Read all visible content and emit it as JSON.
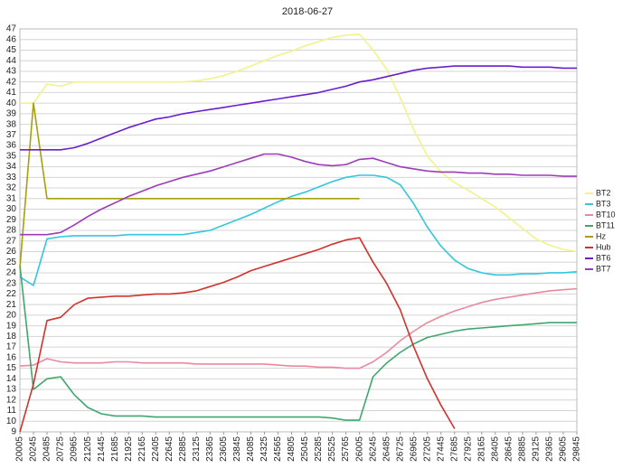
{
  "chart_data": {
    "type": "line",
    "title": "2018-06-27",
    "categories": [
      "20005",
      "20245",
      "20485",
      "20725",
      "20965",
      "21205",
      "21445",
      "21685",
      "21925",
      "22165",
      "22405",
      "22645",
      "22885",
      "23125",
      "23365",
      "23605",
      "23845",
      "24085",
      "24325",
      "24565",
      "24805",
      "25045",
      "25285",
      "25525",
      "25765",
      "26005",
      "26245",
      "26485",
      "26725",
      "26965",
      "27205",
      "27445",
      "27685",
      "27925",
      "28165",
      "28405",
      "28645",
      "28885",
      "29125",
      "29365",
      "29605",
      "29845"
    ],
    "ylim": [
      9,
      47
    ],
    "yticks": [
      9,
      10,
      11,
      12,
      13,
      14,
      15,
      16,
      17,
      18,
      19,
      20,
      21,
      22,
      23,
      24,
      25,
      26,
      27,
      28,
      29,
      30,
      31,
      32,
      33,
      34,
      35,
      36,
      37,
      38,
      39,
      40,
      41,
      42,
      43,
      44,
      45,
      46,
      47
    ],
    "grid": true,
    "legend": "right",
    "series": [
      {
        "name": "BT2",
        "color": "#f2f28c",
        "values": [
          40,
          40,
          41.8,
          41.6,
          42,
          42,
          42,
          42,
          42,
          42,
          42,
          42,
          42,
          42.1,
          42.3,
          42.6,
          43,
          43.5,
          44,
          44.5,
          44.9,
          45.4,
          45.8,
          46.2,
          46.4,
          46.5,
          45,
          43.2,
          40.5,
          37.5,
          35,
          33.5,
          32.5,
          31.8,
          31,
          30.2,
          29.2,
          28.2,
          27.2,
          26.6,
          26.2,
          26
        ]
      },
      {
        "name": "BT3",
        "color": "#33c6dd",
        "values": [
          23.6,
          22.8,
          27.2,
          27.4,
          27.5,
          27.5,
          27.5,
          27.5,
          27.6,
          27.6,
          27.6,
          27.6,
          27.6,
          27.8,
          28,
          28.5,
          29,
          29.5,
          30.1,
          30.7,
          31.2,
          31.6,
          32.1,
          32.6,
          33,
          33.2,
          33.2,
          33,
          32.3,
          30.5,
          28.3,
          26.5,
          25.2,
          24.4,
          24,
          23.8,
          23.8,
          23.9,
          23.9,
          24,
          24,
          24.1
        ]
      },
      {
        "name": "BT10",
        "color": "#e88a9e",
        "values": [
          15.2,
          15.3,
          15.9,
          15.6,
          15.5,
          15.5,
          15.5,
          15.6,
          15.6,
          15.5,
          15.5,
          15.5,
          15.5,
          15.4,
          15.4,
          15.4,
          15.4,
          15.4,
          15.4,
          15.3,
          15.2,
          15.2,
          15.1,
          15.1,
          15,
          15,
          15.6,
          16.5,
          17.6,
          18.5,
          19.3,
          19.9,
          20.4,
          20.8,
          21.2,
          21.5,
          21.7,
          21.9,
          22.1,
          22.3,
          22.4,
          22.5
        ]
      },
      {
        "name": "BT11",
        "color": "#3fa66c",
        "values": [
          24.7,
          13,
          14,
          14.2,
          12.5,
          11.3,
          10.7,
          10.5,
          10.5,
          10.5,
          10.4,
          10.4,
          10.4,
          10.4,
          10.4,
          10.4,
          10.4,
          10.4,
          10.4,
          10.4,
          10.4,
          10.4,
          10.4,
          10.3,
          10.1,
          10.1,
          14.2,
          15.5,
          16.5,
          17.3,
          17.9,
          18.2,
          18.5,
          18.7,
          18.8,
          18.9,
          19,
          19.1,
          19.2,
          19.3,
          19.3,
          19.3
        ]
      },
      {
        "name": "Hz",
        "color": "#a6a00a",
        "values": [
          24.5,
          40,
          31,
          31,
          31,
          31,
          31,
          31,
          31,
          31,
          31,
          31,
          31,
          31,
          31,
          31,
          31,
          31,
          31,
          31,
          31,
          31,
          31,
          31,
          31,
          31,
          null,
          null,
          null,
          null,
          null,
          null,
          null,
          null,
          null,
          null,
          null,
          null,
          null,
          null,
          null,
          null
        ]
      },
      {
        "name": "Hub",
        "color": "#d0322c",
        "values": [
          9,
          13.5,
          19.5,
          19.8,
          21,
          21.6,
          21.7,
          21.8,
          21.8,
          21.9,
          22,
          22,
          22.1,
          22.3,
          22.7,
          23.1,
          23.6,
          24.2,
          24.6,
          25,
          25.4,
          25.8,
          26.2,
          26.7,
          27.1,
          27.3,
          25,
          23,
          20.5,
          17,
          14,
          11.5,
          9.3,
          null,
          null,
          null,
          null,
          null,
          null,
          null,
          null,
          null
        ]
      },
      {
        "name": "BT6",
        "color": "#6a1fcf",
        "values": [
          35.6,
          35.6,
          35.6,
          35.6,
          35.8,
          36.2,
          36.7,
          37.2,
          37.7,
          38.1,
          38.5,
          38.7,
          39,
          39.2,
          39.4,
          39.6,
          39.8,
          40,
          40.2,
          40.4,
          40.6,
          40.8,
          41,
          41.3,
          41.6,
          42,
          42.2,
          42.5,
          42.8,
          43.1,
          43.3,
          43.4,
          43.5,
          43.5,
          43.5,
          43.5,
          43.5,
          43.4,
          43.4,
          43.4,
          43.3,
          43.3
        ]
      },
      {
        "name": "BT7",
        "color": "#9c3db8",
        "values": [
          27.6,
          27.6,
          27.6,
          27.8,
          28.5,
          29.3,
          30,
          30.6,
          31.2,
          31.7,
          32.2,
          32.6,
          33,
          33.3,
          33.6,
          34,
          34.4,
          34.8,
          35.2,
          35.2,
          34.9,
          34.5,
          34.2,
          34.1,
          34.2,
          34.7,
          34.8,
          34.4,
          34,
          33.8,
          33.6,
          33.5,
          33.5,
          33.4,
          33.4,
          33.3,
          33.3,
          33.2,
          33.2,
          33.2,
          33.1,
          33.1
        ]
      }
    ]
  }
}
